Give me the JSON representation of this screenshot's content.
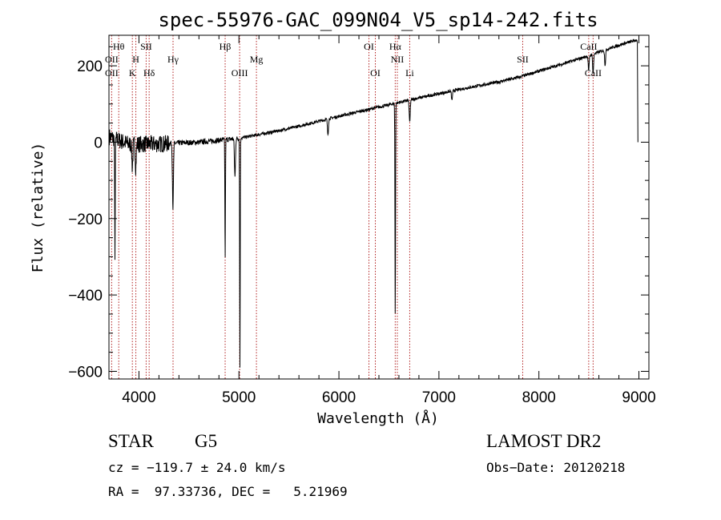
{
  "chart_data": {
    "type": "line",
    "title": "spec-55976-GAC_099N04_V5_sp14-242.fits",
    "xlabel": "Wavelength (Å)",
    "ylabel": "Flux (relative)",
    "xlim": [
      3700,
      9100
    ],
    "ylim": [
      -620,
      280
    ],
    "xticks": [
      4000,
      5000,
      6000,
      7000,
      8000,
      9000
    ],
    "yticks": [
      -600,
      -400,
      -200,
      0,
      200
    ],
    "grid": false,
    "continuum": {
      "x": [
        3700,
        3800,
        3900,
        4000,
        4200,
        4400,
        4600,
        4800,
        5000,
        5200,
        5400,
        5600,
        5800,
        6000,
        6200,
        6400,
        6600,
        6800,
        7000,
        7200,
        7400,
        7600,
        7800,
        8000,
        8200,
        8400,
        8600,
        8800,
        8980
      ],
      "y": [
        15,
        5,
        -5,
        -5,
        -5,
        -2,
        0,
        5,
        10,
        20,
        30,
        42,
        55,
        68,
        80,
        92,
        104,
        116,
        127,
        138,
        148,
        158,
        170,
        186,
        202,
        218,
        236,
        254,
        268
      ]
    },
    "absorption_features": [
      {
        "x": 3760,
        "depth": 300
      },
      {
        "x": 3934,
        "depth": 60
      },
      {
        "x": 3968,
        "depth": 60
      },
      {
        "x": 4340,
        "depth": 170
      },
      {
        "x": 4862,
        "depth": 310
      },
      {
        "x": 4960,
        "depth": 100
      },
      {
        "x": 5010,
        "depth": 600
      },
      {
        "x": 5890,
        "depth": 40
      },
      {
        "x": 6563,
        "depth": 560
      },
      {
        "x": 6708,
        "depth": 60
      },
      {
        "x": 7130,
        "depth": 25
      },
      {
        "x": 8498,
        "depth": 40
      },
      {
        "x": 8542,
        "depth": 50
      },
      {
        "x": 8662,
        "depth": 40
      }
    ],
    "spectral_lines": [
      {
        "label": "Hθ",
        "x": 3798,
        "row": 0
      },
      {
        "label": "OII",
        "x": 3727,
        "row": 1
      },
      {
        "label": "OII",
        "x": 3727,
        "row": 2
      },
      {
        "label": "H",
        "x": 3969,
        "row": 1
      },
      {
        "label": "K",
        "x": 3934,
        "row": 2
      },
      {
        "label": "SII",
        "x": 4072,
        "row": 0
      },
      {
        "label": "Hδ",
        "x": 4102,
        "row": 2
      },
      {
        "label": "Hγ",
        "x": 4341,
        "row": 1
      },
      {
        "label": "Hβ",
        "x": 4862,
        "row": 0
      },
      {
        "label": "OIII",
        "x": 5007,
        "row": 2
      },
      {
        "label": "Mg",
        "x": 5175,
        "row": 1
      },
      {
        "label": "OI",
        "x": 6300,
        "row": 0
      },
      {
        "label": "OI",
        "x": 6364,
        "row": 2
      },
      {
        "label": "Hα",
        "x": 6563,
        "row": 0
      },
      {
        "label": "NII",
        "x": 6584,
        "row": 1
      },
      {
        "label": "Li",
        "x": 6708,
        "row": 2
      },
      {
        "label": "SII",
        "x": 7838,
        "row": 1
      },
      {
        "label": "CaII",
        "x": 8498,
        "row": 0
      },
      {
        "label": "CaII",
        "x": 8542,
        "row": 2
      }
    ],
    "line_color": "#000000",
    "marker_color": "#b22222"
  },
  "info": {
    "class": "STAR",
    "subclass": "G5",
    "survey": "LAMOST DR2",
    "cz": "cz = −119.7 ± 24.0 km/s",
    "obs_date": "Obs−Date: 20120218",
    "coords": "RA =  97.33736, DEC =   5.21969"
  }
}
